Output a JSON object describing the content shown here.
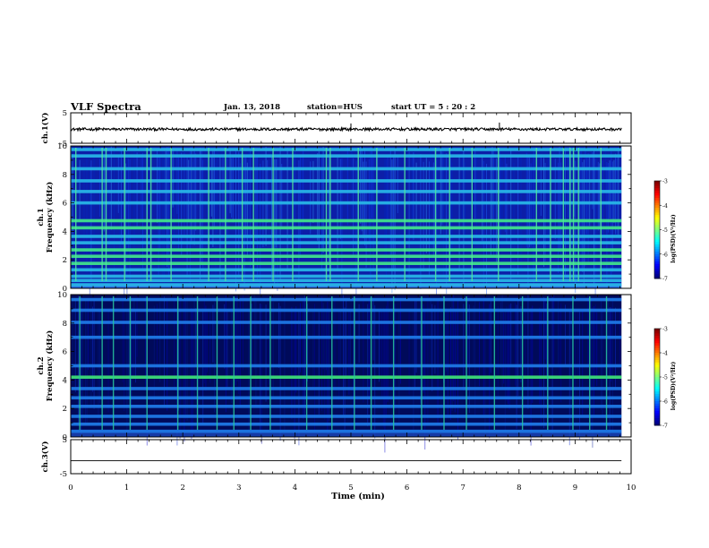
{
  "header": {
    "title": "VLF Spectra",
    "date": "Jan. 13, 2018",
    "station": "station=HUS",
    "start": "start UT = 5 : 20 : 2"
  },
  "chart_data": [
    {
      "type": "line",
      "ylabel": "ch.1(V)",
      "ylim": [
        -5,
        5
      ],
      "yticks": [
        "5",
        "-5"
      ],
      "baseline": -0.4,
      "spikes": [
        {
          "x": 0.5,
          "y": 0.3
        },
        {
          "x": 5.0,
          "y": 1.5
        },
        {
          "x": 7.65,
          "y": 1.8
        }
      ]
    },
    {
      "type": "heatmap",
      "ylabel": "ch.1\nFrequency (kHz)",
      "ylim": [
        0,
        10
      ],
      "yticks": [
        "0",
        "2",
        "4",
        "6",
        "8",
        "10"
      ],
      "colorbar": {
        "label": "log(PSD)(V²/Hz)",
        "ticks": [
          "-3",
          "-4",
          "-5",
          "-6",
          "-7"
        ],
        "range": [
          -7,
          -3
        ]
      },
      "bands_khz": [
        0.25,
        0.55,
        0.85,
        1.3,
        1.75,
        2.25,
        2.7,
        3.2,
        3.65,
        4.25,
        4.75,
        6.0,
        6.8,
        7.55,
        8.4,
        9.3,
        9.75
      ],
      "bursts_min": [
        0.08,
        0.55,
        0.62,
        0.95,
        1.35,
        1.42,
        1.78,
        2.45,
        2.75,
        3.05,
        3.25,
        3.6,
        3.95,
        4.55,
        4.62,
        5.12,
        5.45,
        5.95,
        6.5,
        6.75,
        7.15,
        7.62,
        8.3,
        8.55,
        8.78,
        8.9,
        8.96,
        9.05,
        9.45
      ]
    },
    {
      "type": "heatmap",
      "ylabel": "ch.2\nFrequency (kHz)",
      "ylim": [
        0,
        10
      ],
      "yticks": [
        "0",
        "2",
        "4",
        "6",
        "8",
        "10"
      ],
      "colorbar": {
        "label": "log(PSD)(V²/Hz)",
        "ticks": [
          "-3",
          "-4",
          "-5",
          "-6",
          "-7"
        ],
        "range": [
          -7,
          -3
        ]
      },
      "bands_khz": [
        0.4,
        0.9,
        1.45,
        2.15,
        2.75,
        3.4,
        4.2,
        5.0,
        7.0,
        8.05,
        8.9,
        9.65
      ],
      "bursts_min": [
        0.15,
        0.55,
        0.75,
        1.05,
        1.35,
        1.9,
        2.25,
        2.6,
        2.9,
        3.2,
        3.55,
        4.2,
        4.65,
        5.05,
        5.35,
        5.75,
        6.25,
        6.65,
        7.05,
        7.55,
        8.05,
        8.5,
        8.95,
        9.25,
        9.55
      ]
    },
    {
      "type": "line",
      "ylabel": "ch.3(V)",
      "ylim": [
        -5,
        5
      ],
      "yticks": [
        "5",
        "-5"
      ],
      "baseline": -1.2
    }
  ],
  "xaxis": {
    "label": "Time (min)",
    "range": [
      0,
      10
    ],
    "data_end": 9.83,
    "ticks": [
      "0",
      "1",
      "2",
      "3",
      "4",
      "5",
      "6",
      "7",
      "8",
      "9",
      "10"
    ]
  }
}
